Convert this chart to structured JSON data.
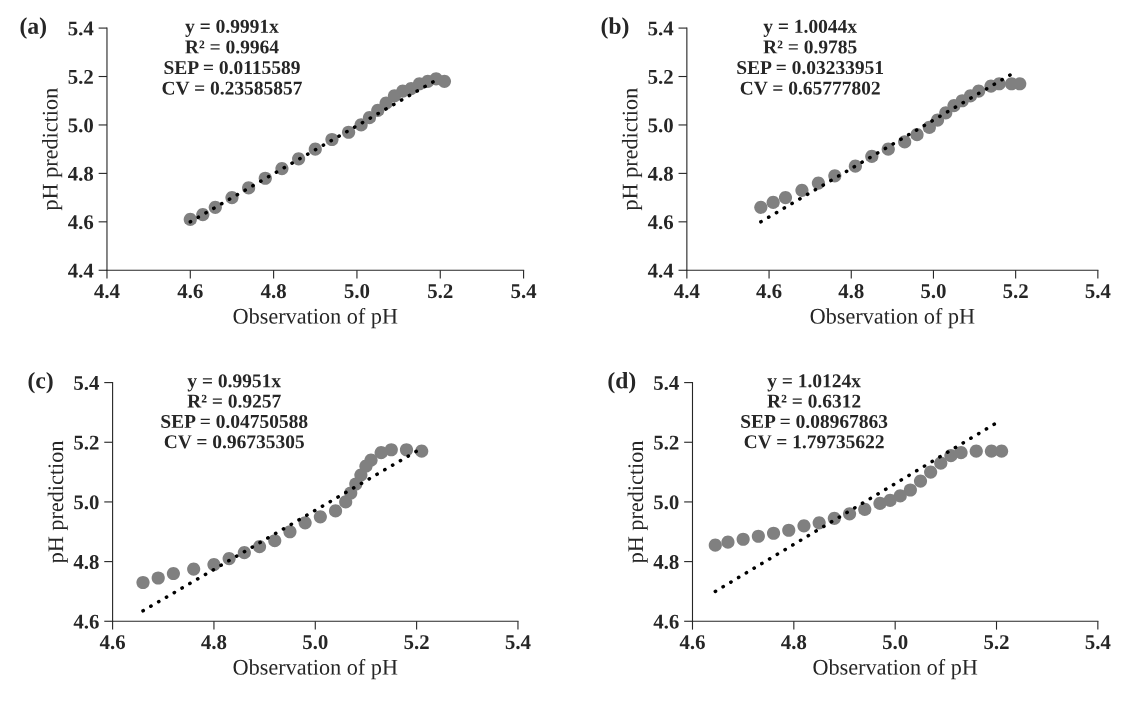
{
  "chart_data": [
    {
      "type": "scatter",
      "title": "(a)",
      "xlabel": "Observation of pH",
      "ylabel": "pH prediction",
      "xlim": [
        4.4,
        5.4
      ],
      "ylim": [
        4.4,
        5.4
      ],
      "xticks": [
        {
          "value": 4.4,
          "label": "4.4"
        },
        {
          "value": 4.6,
          "label": "4.6"
        },
        {
          "value": 4.8,
          "label": "4.8"
        },
        {
          "value": 5.0,
          "label": "5.0"
        },
        {
          "value": 5.2,
          "label": "5.2"
        },
        {
          "value": 5.4,
          "label": "5.4"
        }
      ],
      "yticks": [
        {
          "value": 4.4,
          "label": "4.4"
        },
        {
          "value": 4.6,
          "label": "4.6"
        },
        {
          "value": 4.8,
          "label": "4.8"
        },
        {
          "value": 5.0,
          "label": "5.0"
        },
        {
          "value": 5.2,
          "label": "5.2"
        },
        {
          "value": 5.4,
          "label": "5.4"
        }
      ],
      "annotations": [
        "y = 0.9991x",
        "R² = 0.9964",
        "SEP = 0.0115589",
        "CV = 0.23585857"
      ],
      "series": [
        {
          "marker": "circle",
          "color": "#808080",
          "x": [
            4.6,
            4.63,
            4.66,
            4.7,
            4.74,
            4.78,
            4.82,
            4.86,
            4.9,
            4.94,
            4.98,
            5.01,
            5.03,
            5.05,
            5.07,
            5.09,
            5.11,
            5.13,
            5.15,
            5.17,
            5.19,
            5.21
          ],
          "values": [
            4.61,
            4.63,
            4.66,
            4.7,
            4.74,
            4.78,
            4.82,
            4.86,
            4.9,
            4.94,
            4.97,
            5.0,
            5.03,
            5.06,
            5.09,
            5.12,
            5.14,
            5.15,
            5.17,
            5.18,
            5.19,
            5.18
          ]
        },
        {
          "type": "line",
          "color": "#000000",
          "line_style": "dotted",
          "x": [
            4.6,
            5.2
          ],
          "values": [
            4.6,
            5.195
          ]
        }
      ]
    },
    {
      "type": "scatter",
      "title": "(b)",
      "xlabel": "Observation of pH",
      "ylabel": "pH prediction",
      "xlim": [
        4.4,
        5.4
      ],
      "ylim": [
        4.4,
        5.4
      ],
      "xticks": [
        {
          "value": 4.4,
          "label": "4.4"
        },
        {
          "value": 4.6,
          "label": "4.6"
        },
        {
          "value": 4.8,
          "label": "4.8"
        },
        {
          "value": 5.0,
          "label": "5.0"
        },
        {
          "value": 5.2,
          "label": "5.2"
        },
        {
          "value": 5.4,
          "label": "5.4"
        }
      ],
      "yticks": [
        {
          "value": 4.4,
          "label": "4.4"
        },
        {
          "value": 4.6,
          "label": "4.6"
        },
        {
          "value": 4.8,
          "label": "4.8"
        },
        {
          "value": 5.0,
          "label": "5.0"
        },
        {
          "value": 5.2,
          "label": "5.2"
        },
        {
          "value": 5.4,
          "label": "5.4"
        }
      ],
      "annotations": [
        "y = 1.0044x",
        "R² = 0.9785",
        "SEP = 0.03233951",
        "CV = 0.65777802"
      ],
      "series": [
        {
          "marker": "circle",
          "color": "#808080",
          "x": [
            4.58,
            4.61,
            4.64,
            4.68,
            4.72,
            4.76,
            4.81,
            4.85,
            4.89,
            4.93,
            4.96,
            4.99,
            5.01,
            5.03,
            5.05,
            5.07,
            5.09,
            5.11,
            5.14,
            5.16,
            5.19,
            5.21
          ],
          "values": [
            4.66,
            4.68,
            4.7,
            4.73,
            4.76,
            4.79,
            4.83,
            4.87,
            4.9,
            4.93,
            4.96,
            4.99,
            5.02,
            5.05,
            5.08,
            5.1,
            5.12,
            5.14,
            5.16,
            5.17,
            5.17,
            5.17
          ]
        },
        {
          "type": "line",
          "color": "#000000",
          "line_style": "dotted",
          "x": [
            4.58,
            5.2
          ],
          "values": [
            4.6,
            5.22
          ]
        }
      ]
    },
    {
      "type": "scatter",
      "title": "(c)",
      "xlabel": "Observation of pH",
      "ylabel": "pH prediction",
      "xlim": [
        4.6,
        5.4
      ],
      "ylim": [
        4.6,
        5.4
      ],
      "xticks": [
        {
          "value": 4.6,
          "label": "4.6"
        },
        {
          "value": 4.8,
          "label": "4.8"
        },
        {
          "value": 5.0,
          "label": "5.0"
        },
        {
          "value": 5.2,
          "label": "5.2"
        },
        {
          "value": 5.4,
          "label": "5.4"
        }
      ],
      "yticks": [
        {
          "value": 4.6,
          "label": "4.6"
        },
        {
          "value": 4.8,
          "label": "4.8"
        },
        {
          "value": 5.0,
          "label": "5.0"
        },
        {
          "value": 5.2,
          "label": "5.2"
        },
        {
          "value": 5.4,
          "label": "5.4"
        }
      ],
      "annotations": [
        "y = 0.9951x",
        "R² = 0.9257",
        "SEP = 0.04750588",
        "CV = 0.96735305"
      ],
      "series": [
        {
          "marker": "circle",
          "color": "#808080",
          "x": [
            4.66,
            4.69,
            4.72,
            4.76,
            4.8,
            4.83,
            4.86,
            4.89,
            4.92,
            4.95,
            4.98,
            5.01,
            5.04,
            5.06,
            5.07,
            5.08,
            5.09,
            5.1,
            5.11,
            5.13,
            5.15,
            5.18,
            5.21
          ],
          "values": [
            4.73,
            4.745,
            4.76,
            4.775,
            4.79,
            4.81,
            4.83,
            4.85,
            4.87,
            4.9,
            4.93,
            4.95,
            4.97,
            5.0,
            5.03,
            5.06,
            5.09,
            5.12,
            5.14,
            5.165,
            5.175,
            5.175,
            5.17
          ]
        },
        {
          "type": "line",
          "color": "#000000",
          "line_style": "dotted",
          "x": [
            4.66,
            5.21
          ],
          "values": [
            4.635,
            5.18
          ]
        }
      ]
    },
    {
      "type": "scatter",
      "title": "(d)",
      "xlabel": "Observation of pH",
      "ylabel": "pH prediction",
      "xlim": [
        4.6,
        5.4
      ],
      "ylim": [
        4.6,
        5.4
      ],
      "xticks": [
        {
          "value": 4.6,
          "label": "4.6"
        },
        {
          "value": 4.8,
          "label": "4.8"
        },
        {
          "value": 5.0,
          "label": "5.0"
        },
        {
          "value": 5.2,
          "label": "5.2"
        },
        {
          "value": 5.4,
          "label": "5.4"
        }
      ],
      "yticks": [
        {
          "value": 4.6,
          "label": "4.6"
        },
        {
          "value": 4.8,
          "label": "4.8"
        },
        {
          "value": 5.0,
          "label": "5.0"
        },
        {
          "value": 5.2,
          "label": "5.2"
        },
        {
          "value": 5.4,
          "label": "5.4"
        }
      ],
      "annotations": [
        "y = 1.0124x",
        "R² = 0.6312",
        "SEP = 0.08967863",
        "CV = 1.79735622"
      ],
      "series": [
        {
          "marker": "circle",
          "color": "#808080",
          "x": [
            4.645,
            4.67,
            4.7,
            4.73,
            4.76,
            4.79,
            4.82,
            4.85,
            4.88,
            4.91,
            4.94,
            4.97,
            4.99,
            5.01,
            5.03,
            5.05,
            5.07,
            5.09,
            5.11,
            5.13,
            5.16,
            5.19,
            5.21
          ],
          "values": [
            4.855,
            4.865,
            4.875,
            4.885,
            4.895,
            4.905,
            4.92,
            4.93,
            4.945,
            4.96,
            4.975,
            4.995,
            5.005,
            5.02,
            5.04,
            5.07,
            5.1,
            5.13,
            5.155,
            5.165,
            5.17,
            5.17,
            5.17
          ]
        },
        {
          "type": "line",
          "color": "#000000",
          "line_style": "dotted",
          "x": [
            4.645,
            5.205
          ],
          "values": [
            4.7,
            5.27
          ]
        }
      ]
    }
  ]
}
